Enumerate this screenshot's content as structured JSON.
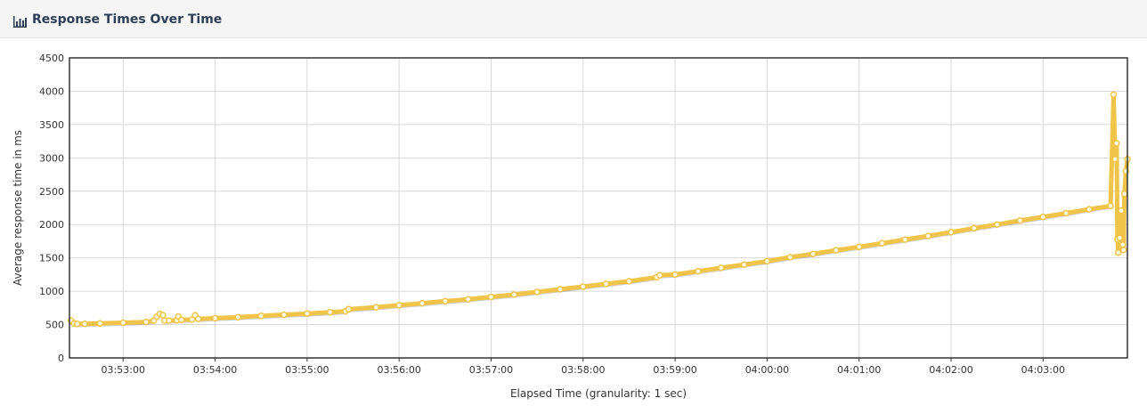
{
  "header": {
    "title": "Response Times Over Time",
    "icon": "bar-chart-icon"
  },
  "chart_data": {
    "type": "line",
    "xlabel": "Elapsed Time (granularity: 1 sec)",
    "ylabel": "Average response time in ms",
    "xlim": [
      "03:52:25",
      "04:03:55"
    ],
    "ylim": [
      0,
      4500
    ],
    "yticks": [
      0,
      500,
      1000,
      1500,
      2000,
      2500,
      3000,
      3500,
      4000,
      4500
    ],
    "xticks": [
      "03:53:00",
      "03:54:00",
      "03:55:00",
      "03:56:00",
      "03:57:00",
      "03:58:00",
      "03:59:00",
      "04:00:00",
      "04:01:00",
      "04:02:00",
      "04:03:00"
    ],
    "grid": true,
    "legend": "none",
    "series_color": "#f0c448",
    "series": [
      {
        "points": [
          [
            "03:52:26",
            560
          ],
          [
            "03:52:28",
            520
          ],
          [
            "03:52:30",
            510
          ],
          [
            "03:52:35",
            512
          ],
          [
            "03:52:45",
            518
          ],
          [
            "03:53:00",
            527
          ],
          [
            "03:53:15",
            540
          ],
          [
            "03:53:20",
            560
          ],
          [
            "03:53:22",
            620
          ],
          [
            "03:53:24",
            660
          ],
          [
            "03:53:26",
            640
          ],
          [
            "03:53:27",
            560
          ],
          [
            "03:53:30",
            560
          ],
          [
            "03:53:35",
            565
          ],
          [
            "03:53:36",
            620
          ],
          [
            "03:53:38",
            570
          ],
          [
            "03:53:45",
            575
          ],
          [
            "03:53:47",
            640
          ],
          [
            "03:53:49",
            585
          ],
          [
            "03:54:00",
            595
          ],
          [
            "03:54:15",
            612
          ],
          [
            "03:54:30",
            630
          ],
          [
            "03:54:45",
            648
          ],
          [
            "03:55:00",
            665
          ],
          [
            "03:55:15",
            685
          ],
          [
            "03:55:25",
            700
          ],
          [
            "03:55:27",
            730
          ],
          [
            "03:55:45",
            760
          ],
          [
            "03:56:00",
            790
          ],
          [
            "03:56:15",
            820
          ],
          [
            "03:56:30",
            850
          ],
          [
            "03:56:45",
            880
          ],
          [
            "03:57:00",
            915
          ],
          [
            "03:57:15",
            950
          ],
          [
            "03:57:30",
            990
          ],
          [
            "03:57:45",
            1030
          ],
          [
            "03:58:00",
            1070
          ],
          [
            "03:58:15",
            1110
          ],
          [
            "03:58:30",
            1150
          ],
          [
            "03:58:48",
            1210
          ],
          [
            "03:58:50",
            1240
          ],
          [
            "03:59:00",
            1250
          ],
          [
            "03:59:15",
            1300
          ],
          [
            "03:59:30",
            1350
          ],
          [
            "03:59:45",
            1400
          ],
          [
            "04:00:00",
            1450
          ],
          [
            "04:00:15",
            1510
          ],
          [
            "04:00:30",
            1560
          ],
          [
            "04:00:45",
            1615
          ],
          [
            "04:01:00",
            1665
          ],
          [
            "04:01:15",
            1720
          ],
          [
            "04:01:30",
            1775
          ],
          [
            "04:01:45",
            1830
          ],
          [
            "04:02:00",
            1885
          ],
          [
            "04:02:15",
            1945
          ],
          [
            "04:02:30",
            2000
          ],
          [
            "04:02:45",
            2060
          ],
          [
            "04:03:00",
            2115
          ],
          [
            "04:03:15",
            2170
          ],
          [
            "04:03:30",
            2230
          ],
          [
            "04:03:44",
            2280
          ],
          [
            "04:03:46",
            3950
          ],
          [
            "04:03:47",
            2980
          ],
          [
            "04:03:48",
            3220
          ],
          [
            "04:03:48.5",
            1780
          ],
          [
            "04:03:49",
            1580
          ],
          [
            "04:03:50",
            1800
          ],
          [
            "04:03:51",
            2210
          ],
          [
            "04:03:52",
            1700
          ],
          [
            "04:03:52.5",
            1620
          ],
          [
            "04:03:53",
            2460
          ],
          [
            "04:03:54",
            2800
          ],
          [
            "04:03:55",
            2980
          ]
        ]
      }
    ]
  }
}
